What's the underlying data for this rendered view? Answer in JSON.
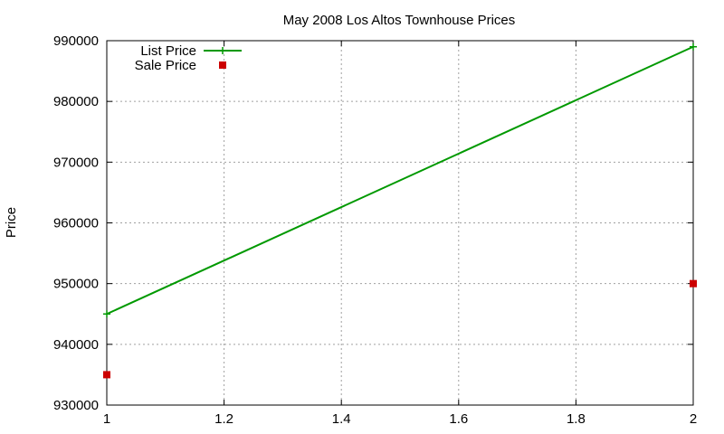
{
  "chart_data": {
    "type": "line",
    "title": "May 2008 Los Altos Townhouse Prices",
    "xlabel": "",
    "ylabel": "Price",
    "xlim": [
      1,
      2
    ],
    "ylim": [
      930000,
      990000
    ],
    "xticks": [
      1,
      1.2,
      1.4,
      1.6,
      1.8,
      2
    ],
    "xtick_labels": [
      "1",
      "1.2",
      "1.4",
      "1.6",
      "1.8",
      "2"
    ],
    "yticks": [
      930000,
      940000,
      950000,
      960000,
      970000,
      980000,
      990000
    ],
    "ytick_labels": [
      "930000",
      "940000",
      "950000",
      "960000",
      "970000",
      "980000",
      "990000"
    ],
    "grid": true,
    "legend_position": "top-left",
    "series": [
      {
        "name": "List Price",
        "type": "linespoints",
        "color": "#009900",
        "marker": "plus",
        "points": [
          [
            1,
            945000
          ],
          [
            2,
            989000
          ]
        ]
      },
      {
        "name": "Sale Price",
        "type": "points",
        "color": "#cc0000",
        "marker": "square",
        "points": [
          [
            1,
            935000
          ],
          [
            2,
            950000
          ]
        ]
      }
    ]
  }
}
